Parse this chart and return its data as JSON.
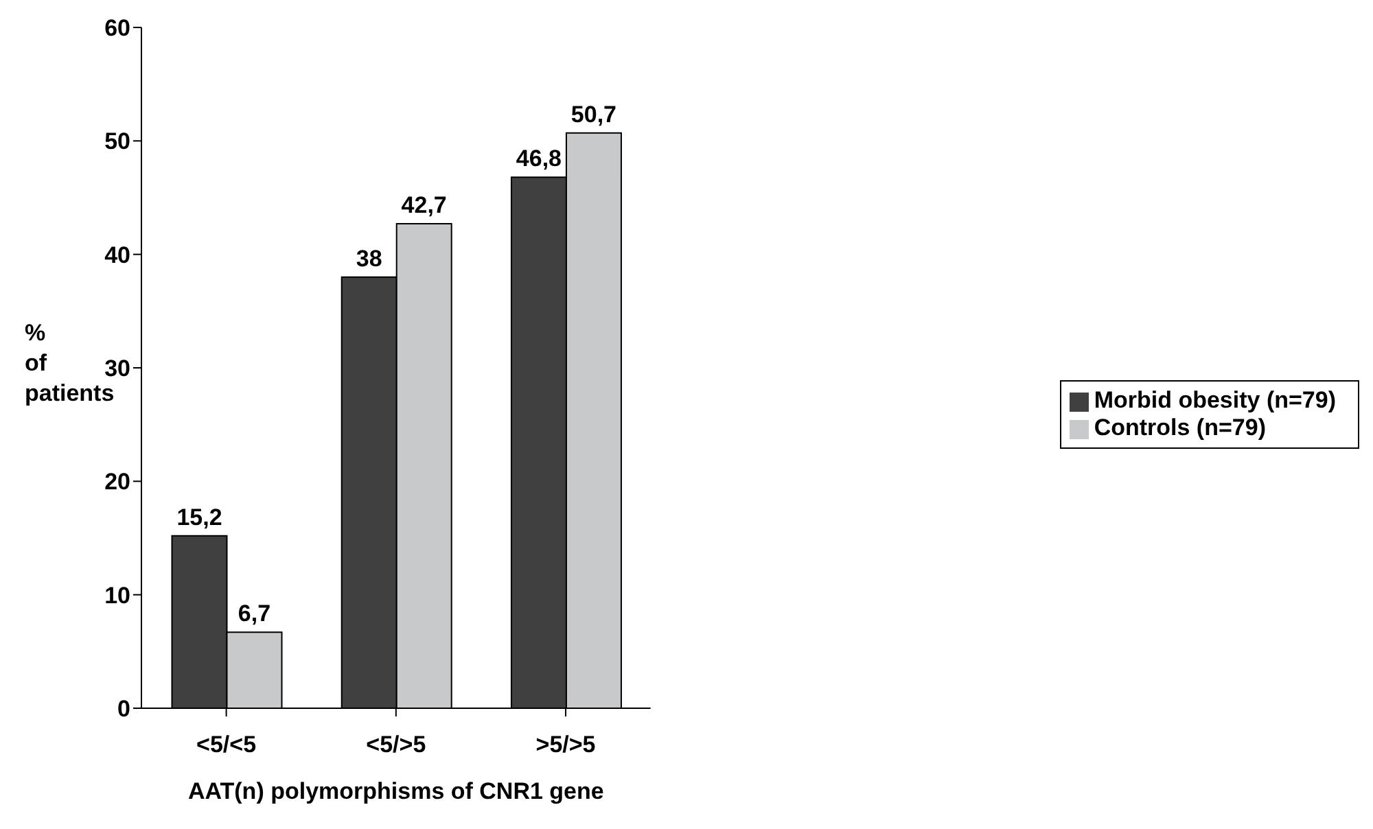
{
  "chart_data": {
    "type": "bar",
    "xlabel": "AAT(n) polymorphisms of CNR1 gene",
    "ylabel": "% of patients",
    "categories": [
      "<5/<5",
      "<5/>5",
      ">5/>5"
    ],
    "series": [
      {
        "name": "Morbid obesity (n=79)",
        "color": "#404040",
        "values": [
          15.2,
          38,
          46.8
        ],
        "value_labels": [
          "15,2",
          "38",
          "46,8"
        ]
      },
      {
        "name": "Controls (n=79)",
        "color": "#c8c9cb",
        "values": [
          6.7,
          42.7,
          50.7
        ],
        "value_labels": [
          "6,7",
          "42,7",
          "50,7"
        ]
      }
    ],
    "ylim": [
      0,
      60
    ],
    "yticks": [
      0,
      10,
      20,
      30,
      40,
      50,
      60
    ],
    "grid": false,
    "legend": "right"
  }
}
